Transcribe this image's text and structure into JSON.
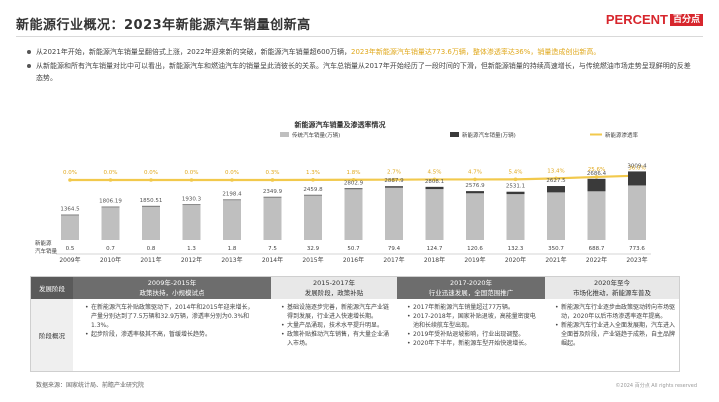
{
  "header": {
    "title": "新能源行业概况：2023年新能源汽车销量创新高",
    "brand": "PERCENT",
    "brand_cn": "百分点"
  },
  "bullets": [
    {
      "text": "从2021年开始，新能源汽车销量呈翻倍式上涨，2022年迎来新的突破，新能源汽车销量超600万辆，",
      "highlight": "2023年新能源汽车销量达773.6万辆，整体渗透率达36%，销量造成创出新高。"
    },
    {
      "text": "从新能源和所有汽车销量对比中可以看出，新能源汽车和燃油汽车的销量呈此消彼长的关系。汽车总销量从2017年开始经历了一段时间的下滑，但新能源销量的持续高速增长，与传统燃油市场走势呈现鲜明的反差态势。",
      "highlight": ""
    }
  ],
  "chart_data": {
    "type": "bar",
    "title": "新能源汽车销量及渗透率情况",
    "legend": [
      "传统汽车销量(万辆)",
      "新能源汽车销量(万辆)",
      "新能源渗透率"
    ],
    "legend_position": "top-center",
    "row_label": "新能源\n汽车销量",
    "categories": [
      "2009年",
      "2010年",
      "2011年",
      "2012年",
      "2013年",
      "2014年",
      "2015年",
      "2016年",
      "2017年",
      "2018年",
      "2019年",
      "2020年",
      "2021年",
      "2022年",
      "2023年"
    ],
    "series": [
      {
        "name": "传统汽车销量(万辆)",
        "values": [
          1364.5,
          1806.19,
          1850.51,
          1930.3,
          2198.4,
          2349.9,
          2459.8,
          2802.9,
          2887.9,
          2808.1,
          2576.9,
          2531.1,
          2627.5,
          2686.4,
          3009.4
        ]
      },
      {
        "name": "新能源汽车销量(万辆)",
        "values": [
          0.5,
          0.7,
          0.8,
          1.3,
          1.8,
          7.5,
          32.9,
          50.7,
          79.4,
          124.7,
          120.6,
          132.3,
          350.7,
          688.7,
          773.6
        ]
      },
      {
        "name": "新能源渗透率",
        "values": [
          "0.0%",
          "0.0%",
          "0.0%",
          "0.0%",
          "0.0%",
          "0.3%",
          "1.3%",
          "1.8%",
          "2.7%",
          "4.5%",
          "4.7%",
          "5.4%",
          "13.4%",
          "25.6%",
          "36.0%"
        ]
      }
    ],
    "colors": {
      "traditional": "#bfbfbf",
      "nev": "#3a3a3a",
      "rate": "#f2c94c"
    }
  },
  "table": {
    "header_label": "发展阶段",
    "body_label": "阶段概况",
    "phases": [
      {
        "title": "2009年-2015年",
        "subtitle": "政策扶持，小规模试点"
      },
      {
        "title": "2015-2017年",
        "subtitle": "发展阶段，政策补贴"
      },
      {
        "title": "2017-2020年",
        "subtitle": "行业迅速发展，全国范围推广"
      },
      {
        "title": "2020年至今",
        "subtitle": "市场化推动，新能源车普及"
      }
    ],
    "cells": [
      [
        "在新能源汽车补贴政策驱动下，2014年和2015年迎来增长，产量分别达到了7.5万辆和32.9万辆，渗透率分别为0.3%和1.3%。",
        "起步阶段，渗透率极其不高，暂缓增长趋势。"
      ],
      [
        "基础设施逐步完善，新能源汽车产业链得到发展，行业进入快速增长期。",
        "大量产品涌现，技术水平提升明显。",
        "政策补贴推动汽车销售，有大量企业涌入市场。"
      ],
      [
        "2017年新能源汽车销量超过77万辆。",
        "2017-2018年，国家补贴退坡，高能量密度电池和长续航车型出现。",
        "2019年受补贴退坡影响，行业出现调整。",
        "2020年下半年，新能源车型开始快速增长。"
      ],
      [
        "新能源汽车行业逐步由政策驱动转向市场驱动，2020年以后市场渗透率逐年提高。",
        "新能源汽车行业进入全面发展期，汽车进入全面普及阶段，产业链趋于成熟，自主品牌崛起。"
      ]
    ]
  },
  "footer": {
    "source": "数据来源：国家统计局、前瞻产业研究院",
    "note": "©2024 百分点 All rights reserved"
  }
}
